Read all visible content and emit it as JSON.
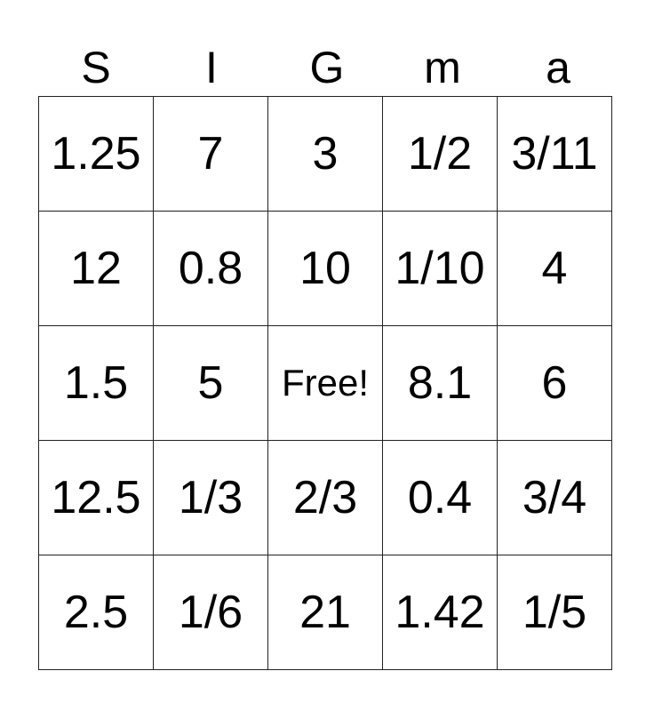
{
  "header": [
    "S",
    "I",
    "G",
    "m",
    "a"
  ],
  "rows": [
    [
      "1.25",
      "7",
      "3",
      "1/2",
      "3/11"
    ],
    [
      "12",
      "0.8",
      "10",
      "1/10",
      "4"
    ],
    [
      "1.5",
      "5",
      "Free!",
      "8.1",
      "6"
    ],
    [
      "12.5",
      "1/3",
      "2/3",
      "0.4",
      "3/4"
    ],
    [
      "2.5",
      "1/6",
      "21",
      "1.42",
      "1/5"
    ]
  ]
}
